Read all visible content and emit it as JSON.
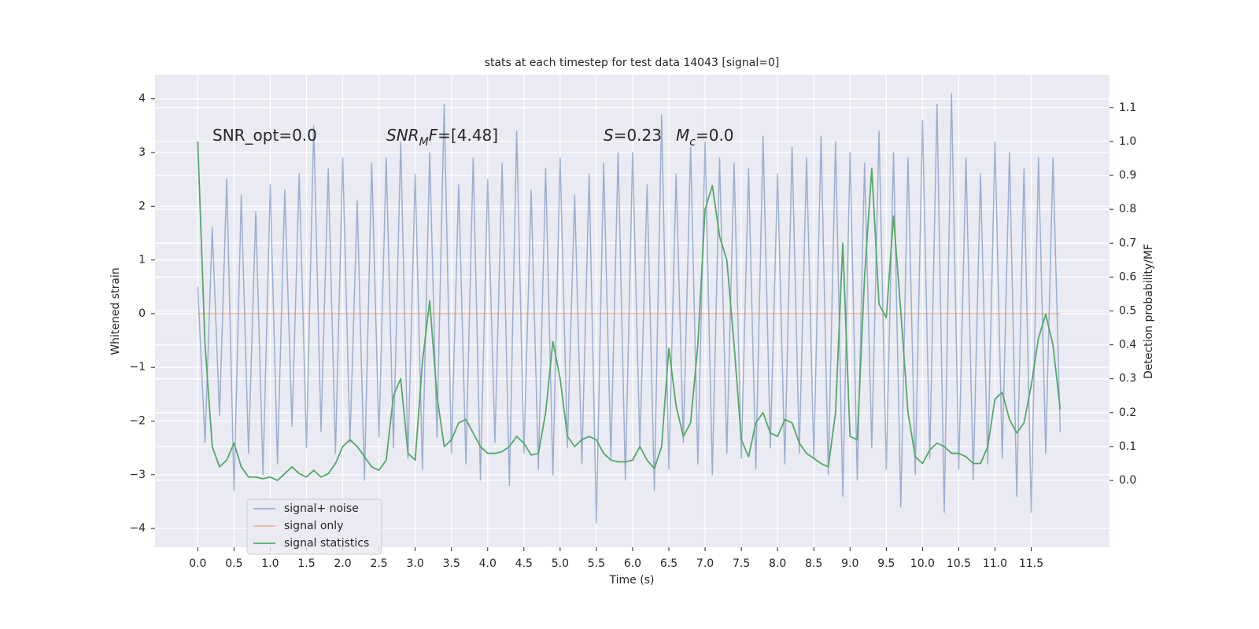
{
  "chart_data": {
    "type": "line",
    "title": "stats at each timestep for test data 14043 [signal=0]",
    "xlabel": "Time (s)",
    "ylabel": "Whitened strain",
    "y2label": "Detection probability/MF",
    "annotations": [
      {
        "parts": [
          {
            "text": "SNR_opt=0.0"
          }
        ]
      },
      {
        "parts": [
          {
            "text": "SNR",
            "italic": true
          },
          {
            "text": "M",
            "italic": true,
            "sub": true
          },
          {
            "text": "F",
            "italic": true
          },
          {
            "text": "=[4.48]"
          }
        ]
      },
      {
        "parts": [
          {
            "text": "S",
            "italic": true
          },
          {
            "text": "=0.23"
          }
        ]
      },
      {
        "parts": [
          {
            "text": "M",
            "italic": true
          },
          {
            "text": "c",
            "italic": true,
            "sub": true
          },
          {
            "text": "=0.0"
          }
        ]
      }
    ],
    "x": [
      0,
      0.1,
      0.2,
      0.3,
      0.4,
      0.5,
      0.6,
      0.7,
      0.8,
      0.9,
      1.0,
      1.1,
      1.2,
      1.3,
      1.4,
      1.5,
      1.6,
      1.7,
      1.8,
      1.9,
      2.0,
      2.1,
      2.2,
      2.3,
      2.4,
      2.5,
      2.6,
      2.7,
      2.8,
      2.9,
      3.0,
      3.1,
      3.2,
      3.3,
      3.4,
      3.5,
      3.6,
      3.7,
      3.8,
      3.9,
      4.0,
      4.1,
      4.2,
      4.3,
      4.4,
      4.5,
      4.6,
      4.7,
      4.8,
      4.9,
      5.0,
      5.1,
      5.2,
      5.3,
      5.4,
      5.5,
      5.6,
      5.7,
      5.8,
      5.9,
      6.0,
      6.1,
      6.2,
      6.3,
      6.4,
      6.5,
      6.6,
      6.7,
      6.8,
      6.9,
      7.0,
      7.1,
      7.2,
      7.3,
      7.4,
      7.5,
      7.6,
      7.7,
      7.8,
      7.9,
      8.0,
      8.1,
      8.2,
      8.3,
      8.4,
      8.5,
      8.6,
      8.7,
      8.8,
      8.9,
      9.0,
      9.1,
      9.2,
      9.3,
      9.4,
      9.5,
      9.6,
      9.7,
      9.8,
      9.9,
      10.0,
      10.1,
      10.2,
      10.3,
      10.4,
      10.5,
      10.6,
      10.7,
      10.8,
      10.9,
      11.0,
      11.1,
      11.2,
      11.3,
      11.4,
      11.5,
      11.6,
      11.7,
      11.8,
      11.9
    ],
    "series": [
      {
        "name": "signal+ noise",
        "color": "#4c72b0",
        "opacity": 0.5,
        "values": [
          0.5,
          -2.4,
          1.6,
          -1.9,
          2.5,
          -3.3,
          2.2,
          -2.6,
          1.9,
          -3.0,
          2.4,
          -2.8,
          2.3,
          -2.1,
          2.6,
          -2.5,
          3.5,
          -2.2,
          2.7,
          -2.6,
          2.9,
          -2.4,
          2.1,
          -3.1,
          2.8,
          -2.3,
          2.9,
          -2.5,
          3.2,
          -2.7,
          2.6,
          -2.9,
          3.0,
          -2.3,
          3.9,
          -2.6,
          2.4,
          -2.8,
          2.9,
          -3.1,
          2.5,
          -2.4,
          2.8,
          -3.2,
          3.4,
          -2.6,
          2.3,
          -2.9,
          2.7,
          -3.0,
          2.9,
          -2.5,
          2.2,
          -2.8,
          2.6,
          -3.9,
          2.8,
          -2.7,
          3.0,
          -3.1,
          3.0,
          -2.5,
          2.4,
          -3.3,
          3.7,
          -2.9,
          2.6,
          -2.4,
          3.1,
          -2.8,
          3.2,
          -3.0,
          2.9,
          -2.6,
          2.8,
          -2.7,
          2.7,
          -2.9,
          3.3,
          -2.5,
          2.6,
          -2.8,
          3.1,
          -2.6,
          2.9,
          -2.7,
          3.3,
          -3.0,
          3.2,
          -3.4,
          3.0,
          -3.1,
          2.8,
          -2.5,
          3.4,
          -2.9,
          3.0,
          -3.6,
          2.9,
          -3.0,
          3.6,
          -2.7,
          3.9,
          -3.7,
          4.1,
          -2.9,
          2.9,
          -3.1,
          2.6,
          -2.8,
          3.2,
          -2.7,
          3.0,
          -3.4,
          2.7,
          -3.7,
          2.9,
          -2.6,
          2.9,
          -2.2
        ]
      },
      {
        "name": "signal only",
        "color": "#dd8452",
        "opacity": 0.5,
        "x": [
          0,
          11.9
        ],
        "values": [
          0,
          0
        ]
      },
      {
        "name": "signal statistics",
        "color": "#55a868",
        "axis": "y2",
        "values": [
          1.0,
          0.4,
          0.1,
          0.04,
          0.06,
          0.11,
          0.04,
          0.01,
          0.01,
          0.005,
          0.01,
          0.0,
          0.02,
          0.04,
          0.02,
          0.01,
          0.03,
          0.01,
          0.02,
          0.05,
          0.1,
          0.12,
          0.1,
          0.07,
          0.04,
          0.03,
          0.06,
          0.25,
          0.3,
          0.08,
          0.06,
          0.35,
          0.53,
          0.25,
          0.1,
          0.12,
          0.17,
          0.18,
          0.14,
          0.1,
          0.08,
          0.08,
          0.085,
          0.1,
          0.13,
          0.11,
          0.075,
          0.08,
          0.2,
          0.41,
          0.3,
          0.13,
          0.1,
          0.12,
          0.13,
          0.12,
          0.08,
          0.06,
          0.055,
          0.055,
          0.06,
          0.1,
          0.06,
          0.035,
          0.1,
          0.39,
          0.22,
          0.13,
          0.17,
          0.4,
          0.8,
          0.87,
          0.72,
          0.65,
          0.4,
          0.12,
          0.07,
          0.17,
          0.2,
          0.14,
          0.13,
          0.18,
          0.17,
          0.11,
          0.08,
          0.065,
          0.05,
          0.04,
          0.2,
          0.7,
          0.13,
          0.12,
          0.6,
          0.92,
          0.52,
          0.48,
          0.78,
          0.5,
          0.2,
          0.07,
          0.05,
          0.09,
          0.11,
          0.1,
          0.08,
          0.08,
          0.07,
          0.05,
          0.05,
          0.1,
          0.24,
          0.26,
          0.18,
          0.14,
          0.17,
          0.28,
          0.42,
          0.49,
          0.4,
          0.21
        ]
      }
    ],
    "xlim": [
      -0.59,
      12.58
    ],
    "ylim": [
      -4.35,
      4.45
    ],
    "y2lim": [
      -0.197,
      1.197
    ],
    "xticks": [
      {
        "value": 0,
        "label": "0.0"
      },
      0.5,
      {
        "value": 1,
        "label": "1.0"
      },
      1.5,
      {
        "value": 2,
        "label": "2.0"
      },
      2.5,
      {
        "value": 3,
        "label": "3.0"
      },
      3.5,
      {
        "value": 4,
        "label": "4.0"
      },
      4.5,
      {
        "value": 5,
        "label": "5.0"
      },
      5.5,
      {
        "value": 6,
        "label": "6.0"
      },
      6.5,
      {
        "value": 7,
        "label": "7.0"
      },
      7.5,
      {
        "value": 8,
        "label": "8.0"
      },
      8.5,
      {
        "value": 9,
        "label": "9.0"
      },
      9.5,
      {
        "value": 10,
        "label": "10.0"
      },
      10.5,
      {
        "value": 11,
        "label": "11.0"
      },
      11.5
    ],
    "yticks": [
      {
        "value": -4,
        "label": "−4"
      },
      {
        "value": -3,
        "label": "−3"
      },
      {
        "value": -2,
        "label": "−2"
      },
      {
        "value": -1,
        "label": "−1"
      },
      0,
      1,
      2,
      3,
      4
    ],
    "y2ticks": [
      {
        "value": 0,
        "label": "0.0"
      },
      0.1,
      0.2,
      0.3,
      0.4,
      0.5,
      0.6,
      0.7,
      0.8,
      0.9,
      {
        "value": 1,
        "label": "1.0"
      },
      1.1
    ],
    "grid": true,
    "legend": "lower left"
  }
}
